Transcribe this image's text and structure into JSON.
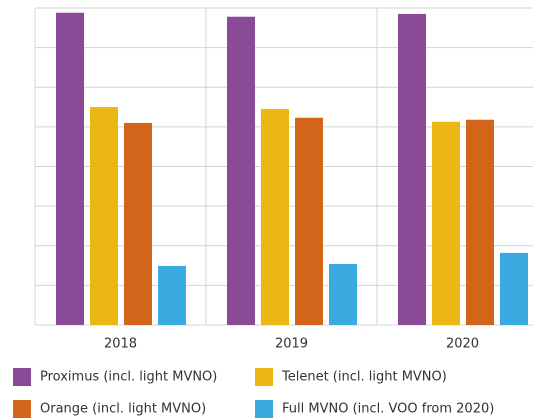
{
  "chart_data": {
    "type": "bar",
    "categories": [
      "2018",
      "2019",
      "2020"
    ],
    "series": [
      {
        "name": "Proximus (incl. light MVNO)",
        "color": "#8b4a97",
        "values": [
          7.88,
          7.78,
          7.85
        ]
      },
      {
        "name": "Telenet (incl. light MVNO)",
        "color": "#ebb714",
        "values": [
          5.5,
          5.45,
          5.13
        ]
      },
      {
        "name": "Orange (incl. light MVNO)",
        "color": "#d2651a",
        "values": [
          5.1,
          5.23,
          5.18
        ]
      },
      {
        "name": "Full MVNO (incl. VOO from 2020)",
        "color": "#3aaae0",
        "values": [
          1.49,
          1.54,
          1.82
        ]
      }
    ],
    "ylim": [
      0,
      8
    ],
    "yticks": [
      0,
      1,
      2,
      3,
      4,
      5,
      6,
      7,
      8
    ],
    "grid": true,
    "legend": "bottom"
  }
}
